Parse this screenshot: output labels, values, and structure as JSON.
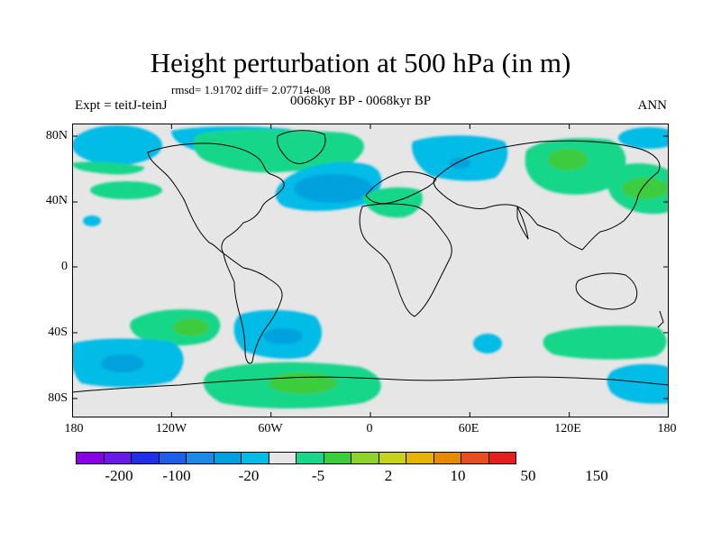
{
  "header": {
    "title": "Height perturbation at 500 hPa (in m)",
    "stats": "rmsd= 1.91702 diff= 2.07714e-08",
    "experiment": "Expt = teitJ-teinJ",
    "period": "0068kyr BP - 0068kyr BP",
    "season": "ANN"
  },
  "map": {
    "projection": "cylindrical-equidistant",
    "background_color": "#e6e6e6",
    "lat_ticks": [
      "80N",
      "40N",
      "0",
      "40S",
      "80S"
    ],
    "lon_ticks": [
      "180",
      "120W",
      "60W",
      "0",
      "60E",
      "120E",
      "180"
    ],
    "anomaly_regions": [
      {
        "name": "north-pacific-west-negative",
        "level": "-5",
        "color": "#00bce6"
      },
      {
        "name": "north-america-positive",
        "level": "2",
        "color": "#19d68a"
      },
      {
        "name": "north-atlantic-negative",
        "level": "-20",
        "color": "#00a1dd"
      },
      {
        "name": "siberia-positive",
        "level": "10",
        "color": "#3ccc3c"
      },
      {
        "name": "mediterranean-positive",
        "level": "2",
        "color": "#19d68a"
      },
      {
        "name": "southern-ocean-atlantic-positive",
        "level": "10",
        "color": "#3ccc3c"
      },
      {
        "name": "south-pacific-negative",
        "level": "-5",
        "color": "#00bce6"
      },
      {
        "name": "south-america-negative",
        "level": "-5",
        "color": "#00bce6"
      }
    ]
  },
  "colorbar": {
    "colors": [
      "#8a00e6",
      "#6a1be8",
      "#2030e6",
      "#1e5fe6",
      "#1e8ae6",
      "#00a1dd",
      "#00bce6",
      "#e6e6e6",
      "#19d68a",
      "#3ccc3c",
      "#8ed22e",
      "#c8d21a",
      "#e6b400",
      "#e68a00",
      "#e6501e",
      "#e61e1e"
    ],
    "labels": [
      "-200",
      "-100",
      "-20",
      "-5",
      "2",
      "10",
      "50",
      "150"
    ]
  }
}
